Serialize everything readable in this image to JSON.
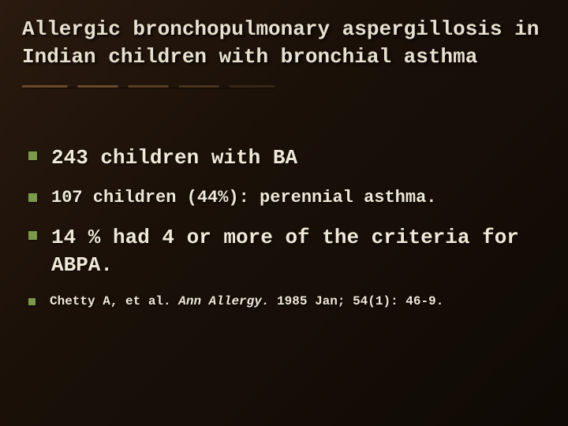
{
  "slide": {
    "title": "Allergic bronchopulmonary aspergillosis in Indian children with bronchial asthma",
    "bullets": [
      {
        "text": "243 children with BA",
        "size": "large"
      },
      {
        "text": "107 children (44%): perennial asthma.",
        "size": "med"
      },
      {
        "text": "14 % had 4 or more of the criteria for ABPA.",
        "size": "large"
      },
      {
        "text_prefix": "Chetty A, et al. ",
        "text_ital": "Ann Allergy.",
        "text_suffix": " 1985 Jan; 54(1): 46-9.",
        "size": "small"
      }
    ]
  },
  "style": {
    "background_gradient": [
      "#2a1a0f",
      "#1a1008",
      "#0f0a05"
    ],
    "title_color": "#e8e0d0",
    "text_color": "#f0e8d8",
    "bullet_marker_color": "#7a9a4a",
    "divider_colors": [
      "#6b4a2a",
      "#5a3e22",
      "#4a321c",
      "#3a2615"
    ],
    "font_family": "Courier New",
    "title_fontsize": 26,
    "bullet_large_fontsize": 26,
    "bullet_med_fontsize": 22,
    "bullet_small_fontsize": 16,
    "slide_width": 720,
    "slide_height": 540
  }
}
